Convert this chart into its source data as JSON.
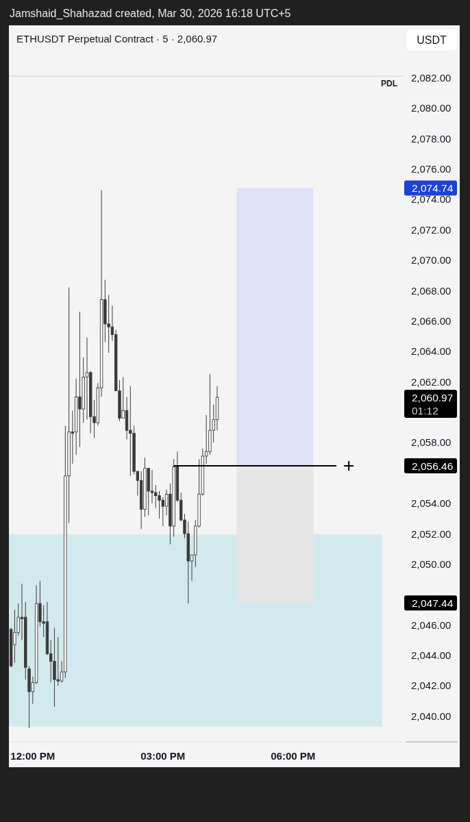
{
  "chart_data": {
    "type": "candlestick",
    "title": "ETHUSDT Perpetual Contract · 5 · 2,060.97",
    "subtitle": "Jamshaid_Shahazad created, Mar 30, 2026 16:18 UTC+5",
    "ylabel": "USDT",
    "series": [
      {
        "color": "#3a3a3a",
        "x": [
          11.5,
          11.5833,
          11.6667,
          11.75,
          11.8333,
          11.9167,
          12,
          12.0833,
          12.1667,
          12.25,
          12.3333,
          12.4167,
          12.5,
          12.5833,
          12.6667,
          12.75,
          12.8333,
          12.9167,
          13,
          13.0833,
          13.1667,
          13.25,
          13.3333,
          13.4167,
          13.5,
          13.5833,
          13.6667,
          13.75,
          13.8333,
          13.9167,
          14,
          14.0833,
          14.1667,
          14.25,
          14.3333,
          14.4167,
          14.5,
          14.5833,
          14.6667,
          14.75,
          14.8333,
          14.9167,
          15,
          15.0833,
          15.1667,
          15.25,
          15.3333,
          15.4167,
          15.5,
          15.5833,
          15.6667,
          15.75,
          15.8333,
          15.9167,
          16,
          16.0833,
          16.1667,
          16.25
        ],
        "ohlc": [
          [
            2045.7,
            2045.8,
            2043.2,
            2043.3
          ],
          [
            2044.7,
            2047.0,
            2043.5,
            2045.5
          ],
          [
            2045.5,
            2047.4,
            2045.3,
            2046.5
          ],
          [
            2046.5,
            2048.7,
            2045.0,
            2046.4
          ],
          [
            2046.5,
            2047.5,
            2042.4,
            2043.2
          ],
          [
            2043.1,
            2043.3,
            2039.2,
            2041.6
          ],
          [
            2041.6,
            2042.6,
            2040.8,
            2042.2
          ],
          [
            2042.2,
            2048.6,
            2042.1,
            2047.4
          ],
          [
            2047.4,
            2048.9,
            2045.9,
            2046.2
          ],
          [
            2046.2,
            2047.3,
            2045.2,
            2046.1
          ],
          [
            2046.2,
            2047.5,
            2044.0,
            2044.1
          ],
          [
            2044.1,
            2045.0,
            2042.2,
            2043.6
          ],
          [
            2043.6,
            2045.8,
            2040.6,
            2042.4
          ],
          [
            2042.4,
            2045.2,
            2042.0,
            2042.3
          ],
          [
            2042.3,
            2043.6,
            2042.2,
            2042.9
          ],
          [
            2042.9,
            2059.1,
            2042.5,
            2055.8
          ],
          [
            2055.8,
            2068.2,
            2052.7,
            2058.7
          ],
          [
            2058.7,
            2060.1,
            2056.6,
            2058.6
          ],
          [
            2058.7,
            2062.2,
            2057.2,
            2061.0
          ],
          [
            2061.0,
            2066.6,
            2057.7,
            2060.2
          ],
          [
            2060.2,
            2063.6,
            2059.3,
            2062.3
          ],
          [
            2062.3,
            2064.9,
            2059.5,
            2062.6
          ],
          [
            2062.6,
            2062.7,
            2058.6,
            2059.7
          ],
          [
            2059.7,
            2060.8,
            2058.3,
            2059.3
          ],
          [
            2059.3,
            2061.9,
            2059.1,
            2061.6
          ],
          [
            2061.6,
            2074.6,
            2061.0,
            2067.4
          ],
          [
            2067.4,
            2068.7,
            2064.6,
            2065.8
          ],
          [
            2065.8,
            2067.7,
            2063.9,
            2065.6
          ],
          [
            2065.6,
            2067.0,
            2064.7,
            2065.1
          ],
          [
            2065.1,
            2065.4,
            2061.4,
            2061.4
          ],
          [
            2061.4,
            2062.1,
            2059.4,
            2059.6
          ],
          [
            2059.6,
            2062.3,
            2059.6,
            2060.1
          ],
          [
            2060.1,
            2061.0,
            2058.2,
            2058.8
          ],
          [
            2058.8,
            2061.7,
            2055.8,
            2058.6
          ],
          [
            2058.6,
            2059.1,
            2055.9,
            2056.1
          ],
          [
            2056.1,
            2056.1,
            2054.5,
            2055.5
          ],
          [
            2055.5,
            2056.1,
            2052.3,
            2053.6
          ],
          [
            2053.6,
            2057.0,
            2053.1,
            2056.3
          ],
          [
            2056.3,
            2056.3,
            2053.2,
            2054.8
          ],
          [
            2054.8,
            2056.2,
            2054.0,
            2054.7
          ],
          [
            2054.7,
            2055.2,
            2053.7,
            2054.5
          ],
          [
            2054.5,
            2054.8,
            2053.0,
            2054.2
          ],
          [
            2054.2,
            2054.4,
            2052.5,
            2053.8
          ],
          [
            2053.8,
            2054.9,
            2053.2,
            2054.6
          ],
          [
            2054.6,
            2055.3,
            2051.3,
            2052.5
          ],
          [
            2052.5,
            2056.9,
            2051.8,
            2056.4
          ],
          [
            2056.4,
            2057.4,
            2054.1,
            2054.2
          ],
          [
            2054.2,
            2054.7,
            2052.8,
            2052.9
          ],
          [
            2052.9,
            2053.3,
            2051.7,
            2052.0
          ],
          [
            2052.0,
            2052.8,
            2047.4,
            2050.2
          ],
          [
            2050.2,
            2050.6,
            2048.9,
            2050.6
          ],
          [
            2050.6,
            2052.9,
            2049.8,
            2052.5
          ],
          [
            2052.5,
            2056.9,
            2052.4,
            2054.6
          ],
          [
            2054.6,
            2057.6,
            2054.5,
            2057.1
          ],
          [
            2057.1,
            2059.8,
            2056.6,
            2057.4
          ],
          [
            2057.4,
            2062.5,
            2057.2,
            2058.8
          ],
          [
            2058.8,
            2060.5,
            2058.0,
            2059.5
          ],
          [
            2059.5,
            2061.7,
            2058.8,
            2060.97
          ]
        ]
      },
      {
        "type": "line",
        "x": [
          11.45,
          20.05
        ],
        "values": [
          2051.9,
          2051.9
        ],
        "lower": [
          2039.3,
          2039.3
        ],
        "upper": [
          2051.9,
          2051.9
        ],
        "color": "#d2eaee"
      },
      {
        "type": "bar",
        "x": [
          17.585
        ],
        "base": [
          2056.46
        ],
        "values": [
          18.28
        ],
        "color": "#dde2f8"
      },
      {
        "type": "bar",
        "x": [
          17.585
        ],
        "base": [
          2047.44
        ],
        "values": [
          9.02
        ],
        "color": "#e6e6e6"
      },
      {
        "type": "line",
        "x": [
          15.25,
          19.0
        ],
        "values": [
          2056.46,
          2056.46
        ],
        "color": "#000000"
      }
    ],
    "xlim": [
      11.45,
      20.53
    ],
    "xticks": [
      {
        "value": 12,
        "label": "12:00 PM"
      },
      {
        "value": 15,
        "label": "03:00 PM"
      },
      {
        "value": 18,
        "label": "06:00 PM"
      }
    ],
    "ylim": [
      2038.3,
      2085.4
    ],
    "yticks": [
      {
        "value": 2040,
        "label": "2,040.00"
      },
      {
        "value": 2042,
        "label": "2,042.00"
      },
      {
        "value": 2044,
        "label": "2,044.00"
      },
      {
        "value": 2046,
        "label": "2,046.00"
      },
      {
        "value": 2047.44,
        "label": "2,047.44"
      },
      {
        "value": 2050,
        "label": "2,050.00"
      },
      {
        "value": 2052,
        "label": "2,052.00"
      },
      {
        "value": 2054,
        "label": "2,054.00"
      },
      {
        "value": 2056.46,
        "label": "2,056.46"
      },
      {
        "value": 2058,
        "label": "2,058.00"
      },
      {
        "value": 2060.97,
        "label": "2,060.97"
      },
      {
        "value": 2062,
        "label": "2,062.00"
      },
      {
        "value": 2064,
        "label": "2,064.00"
      },
      {
        "value": 2066,
        "label": "2,066.00"
      },
      {
        "value": 2068,
        "label": "2,068.00"
      },
      {
        "value": 2070,
        "label": "2,070.00"
      },
      {
        "value": 2072,
        "label": "2,072.00"
      },
      {
        "value": 2074,
        "label": "2,074.00"
      },
      {
        "value": 2074.74,
        "label": "2,074.74"
      },
      {
        "value": 2076,
        "label": "2,076.00"
      },
      {
        "value": 2078,
        "label": "2,078.00"
      },
      {
        "value": 2080,
        "label": "2,080.00"
      },
      {
        "value": 2082,
        "label": "2,082.00"
      }
    ],
    "ref_lines": [
      {
        "axis": "y",
        "value": 2082.1,
        "label": "PDL",
        "color": "#dadada"
      }
    ],
    "annotations": [
      "01:12"
    ]
  }
}
